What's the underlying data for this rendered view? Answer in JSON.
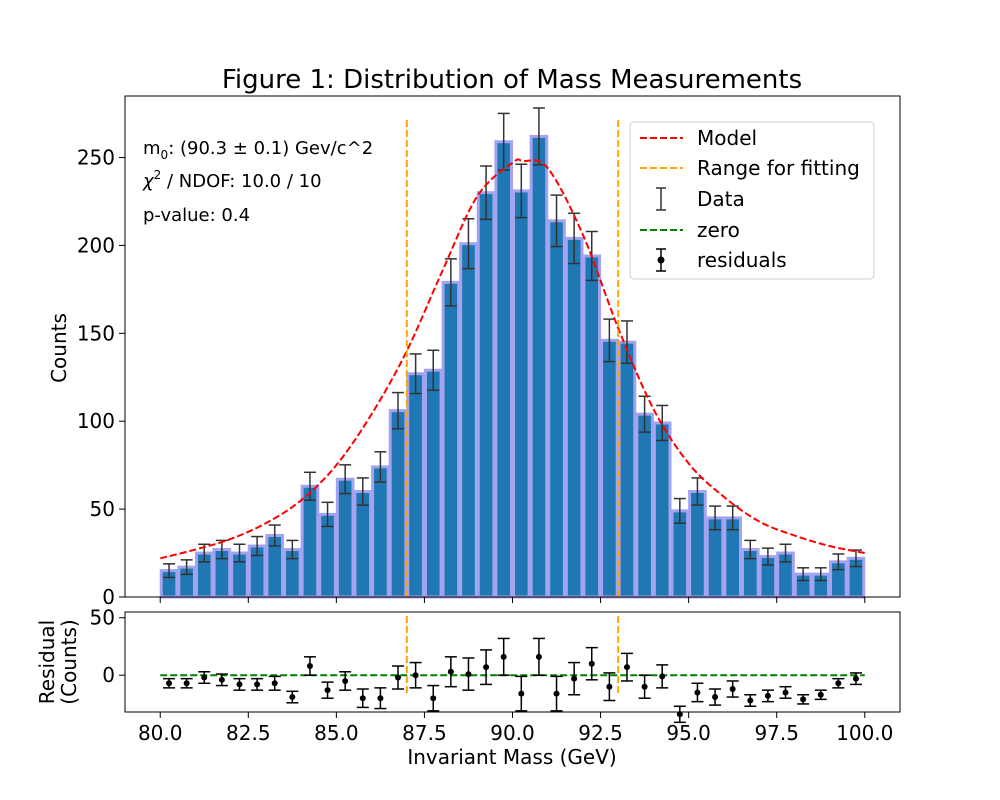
{
  "figure_title": "Figure 1: Distribution of Mass Measurements",
  "annotations": {
    "m0_label": "m",
    "m0_subscript": "0",
    "m0_value": ": (90.3 ± 0.1) Gev/c^2",
    "chi2_symbol": "χ",
    "chi2_superscript": "2",
    "chi2_value": " / NDOF: 10.0 / 10",
    "pvalue": "p-value: 0.4"
  },
  "legend_labels": {
    "model": "Model",
    "range": "Range for fitting",
    "data": "Data",
    "zero": "zero",
    "residuals": "residuals"
  },
  "colors": {
    "bar_fill": "#1f77b4",
    "bar_edge": "#a3a3f0",
    "model": "#ff0000",
    "range": "#ffa500",
    "zero": "#008000",
    "errorbar": "#333333",
    "residual": "#000000"
  },
  "chart_data": [
    {
      "type": "bar",
      "ylabel": "Counts",
      "xlim": [
        79,
        101
      ],
      "ylim": [
        0,
        285
      ],
      "yticks": [
        "0",
        "50",
        "100",
        "150",
        "200",
        "250"
      ],
      "ytick_values": [
        0,
        50,
        100,
        150,
        200,
        250
      ],
      "bin_width": 0.5,
      "x": [
        80.25,
        80.75,
        81.25,
        81.75,
        82.25,
        82.75,
        83.25,
        83.75,
        84.25,
        84.75,
        85.25,
        85.75,
        86.25,
        86.75,
        87.25,
        87.75,
        88.25,
        88.75,
        89.25,
        89.75,
        90.25,
        90.75,
        91.25,
        91.75,
        92.25,
        92.75,
        93.25,
        93.75,
        94.25,
        94.75,
        95.25,
        95.75,
        96.25,
        96.75,
        97.25,
        97.75,
        98.25,
        98.75,
        99.25,
        99.75
      ],
      "counts": [
        15,
        17,
        25,
        27,
        25,
        29,
        35,
        27,
        63,
        47,
        67,
        60,
        74,
        106,
        127,
        129,
        179,
        201,
        230,
        259,
        231,
        262,
        214,
        204,
        194,
        146,
        145,
        104,
        99,
        49,
        60,
        45,
        45,
        27,
        23,
        25,
        13,
        13,
        20,
        22
      ],
      "model_curve": {
        "name": "Model",
        "x": [
          80,
          81,
          82,
          83,
          84,
          85,
          86,
          87,
          88,
          89,
          90,
          90.3,
          91,
          92,
          93,
          94,
          95,
          96,
          97,
          98,
          99,
          100
        ],
        "y": [
          22,
          27,
          33,
          42,
          55,
          75,
          104,
          140,
          185,
          228,
          247,
          248,
          244,
          206,
          153,
          107,
          76,
          57,
          43,
          35,
          29,
          25
        ]
      },
      "fit_range": [
        87,
        93
      ]
    },
    {
      "type": "scatter",
      "xlabel": "Invariant Mass (GeV)",
      "ylabel": "Residual\n(Counts)",
      "xlim": [
        79,
        101
      ],
      "ylim": [
        -32,
        55
      ],
      "yticks": [
        "0",
        "50"
      ],
      "ytick_values": [
        0,
        50
      ],
      "xticks": [
        "80.0",
        "82.5",
        "85.0",
        "87.5",
        "90.0",
        "92.5",
        "95.0",
        "97.5",
        "100.0"
      ],
      "xtick_values": [
        80,
        82.5,
        85,
        87.5,
        90,
        92.5,
        95,
        97.5,
        100
      ],
      "zero_line": {
        "name": "zero",
        "value": 0
      },
      "x": [
        80.25,
        80.75,
        81.25,
        81.75,
        82.25,
        82.75,
        83.25,
        83.75,
        84.25,
        84.75,
        85.25,
        85.75,
        86.25,
        86.75,
        87.25,
        87.75,
        88.25,
        88.75,
        89.25,
        89.75,
        90.25,
        90.75,
        91.25,
        91.75,
        92.25,
        92.75,
        93.25,
        93.75,
        94.25,
        94.75,
        95.25,
        95.75,
        96.25,
        96.75,
        97.25,
        97.75,
        98.25,
        98.75,
        99.25,
        99.75
      ],
      "residuals": [
        -7,
        -7,
        -2,
        -4,
        -8,
        -8,
        -7,
        -19,
        8,
        -13,
        -5,
        -20,
        -20,
        -2,
        0,
        -20,
        3,
        1,
        7,
        16,
        -16,
        16,
        -16,
        -3,
        10,
        -10,
        7,
        -10,
        -1,
        -34,
        -15,
        -19,
        -12,
        -22,
        -18,
        -15,
        -21,
        -17,
        -7,
        -3
      ],
      "errors": [
        4,
        4,
        5,
        5,
        5,
        5,
        6,
        5,
        8,
        7,
        8,
        8,
        9,
        10,
        11,
        11,
        13,
        14,
        15,
        16,
        15,
        16,
        15,
        14,
        14,
        12,
        12,
        10,
        10,
        7,
        8,
        7,
        7,
        5,
        5,
        5,
        4,
        4,
        4,
        5
      ]
    }
  ]
}
